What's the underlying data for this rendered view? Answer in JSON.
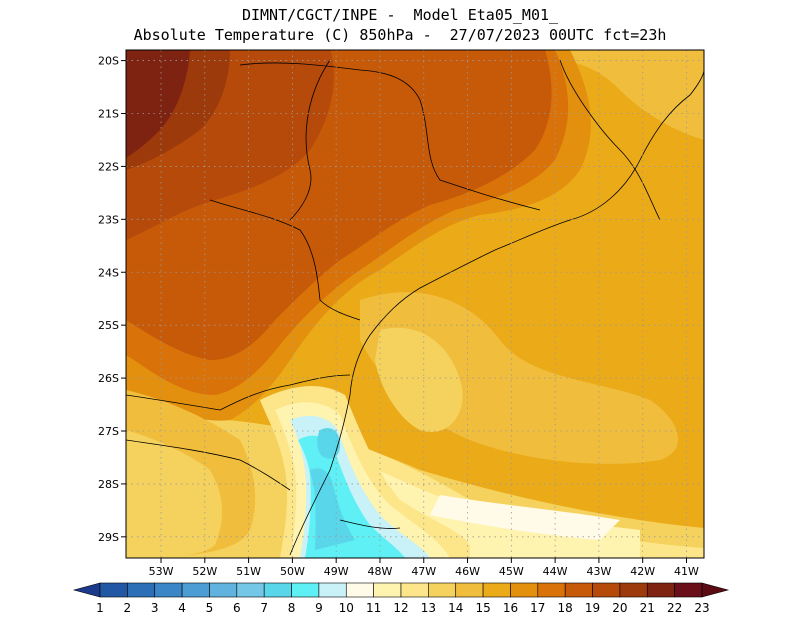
{
  "header": {
    "line1": "DIMNT/CGCT/INPE -  Model Eta05_M01_",
    "line2": "Absolute Temperature (C) 850hPa -  27/07/2023 00UTC fct=23h"
  },
  "map": {
    "lon_range": [
      -53.8,
      -40.6
    ],
    "lat_range": [
      -29.4,
      -19.8
    ],
    "lat_labels": [
      "20S",
      "21S",
      "22S",
      "23S",
      "24S",
      "25S",
      "26S",
      "27S",
      "28S",
      "29S"
    ],
    "lon_labels": [
      "53W",
      "52W",
      "51W",
      "50W",
      "49W",
      "48W",
      "47W",
      "46W",
      "45W",
      "44W",
      "43W",
      "42W",
      "41W"
    ],
    "grid": "dotted"
  },
  "colorbar": {
    "labels": [
      "1",
      "2",
      "3",
      "4",
      "5",
      "6",
      "7",
      "8",
      "9",
      "10",
      "11",
      "12",
      "13",
      "14",
      "15",
      "16",
      "17",
      "18",
      "19",
      "20",
      "21",
      "22",
      "23"
    ],
    "colors": [
      "#1c3a8c",
      "#2257a3",
      "#2d6fb6",
      "#3a86c6",
      "#4b9dd3",
      "#5fb3de",
      "#74c7e6",
      "#59d6ea",
      "#5ef0f5",
      "#c8f2f7",
      "#fffbe8",
      "#fff3b0",
      "#fde58a",
      "#f5d25e",
      "#f0bd3c",
      "#ebaa18",
      "#e3900f",
      "#d97208",
      "#c75a08",
      "#b54a0a",
      "#9c3a0c",
      "#7e2311",
      "#6a0f19",
      "#5a0b14"
    ]
  }
}
